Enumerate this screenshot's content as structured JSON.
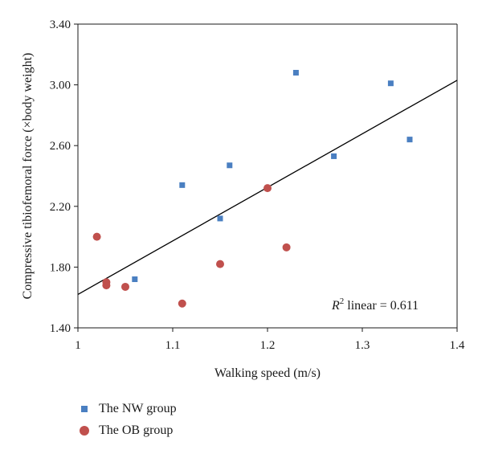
{
  "chart_data": {
    "type": "scatter",
    "xlabel": "Walking speed (m/s)",
    "ylabel": "Compressive  tibiofemoral force (×body weight)",
    "xlim": [
      1,
      1.4
    ],
    "ylim": [
      1.4,
      3.4
    ],
    "x_ticks": [
      "1",
      "1.1",
      "1.2",
      "1.3",
      "1.4"
    ],
    "y_ticks": [
      "1.40",
      "1.80",
      "2.20",
      "2.60",
      "3.00",
      "3.40"
    ],
    "grid": false,
    "legend_position": "bottom-left",
    "series": [
      {
        "name": "The NW group",
        "marker": "square",
        "color": "#4a7fc1",
        "points": [
          [
            1.06,
            1.72
          ],
          [
            1.11,
            2.34
          ],
          [
            1.15,
            2.12
          ],
          [
            1.16,
            2.47
          ],
          [
            1.23,
            3.08
          ],
          [
            1.27,
            2.53
          ],
          [
            1.33,
            3.01
          ],
          [
            1.35,
            2.64
          ]
        ]
      },
      {
        "name": "The OB group",
        "marker": "circle",
        "color": "#c0504d",
        "points": [
          [
            1.02,
            2.0
          ],
          [
            1.03,
            1.7
          ],
          [
            1.03,
            1.68
          ],
          [
            1.05,
            1.67
          ],
          [
            1.11,
            1.56
          ],
          [
            1.15,
            1.82
          ],
          [
            1.2,
            2.32
          ],
          [
            1.22,
            1.93
          ]
        ]
      }
    ],
    "trendline": {
      "type": "linear",
      "x": [
        1,
        1.4
      ],
      "y": [
        1.62,
        3.03
      ],
      "color": "#000000"
    },
    "annotation": {
      "symbol": "R",
      "superscript": "2",
      "text": " linear = 0.611"
    }
  }
}
